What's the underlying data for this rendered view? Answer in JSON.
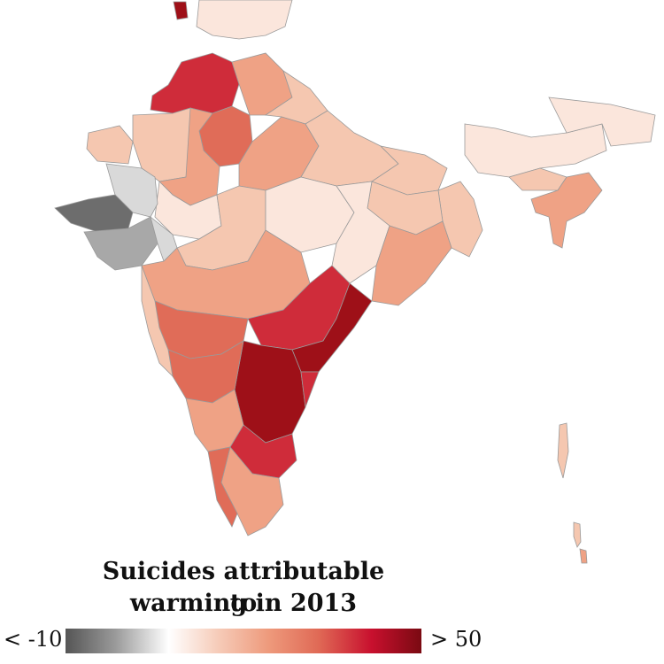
{
  "legend": {
    "title_line1": "Suicides attributable to",
    "title_line2": "warming in 2013",
    "min_label": "< -10",
    "max_label": "> 50",
    "colors": [
      "#555555",
      "#9a9a9a",
      "#ffffff",
      "#f6cbb8",
      "#ee9a7c",
      "#e06a56",
      "#c8102e",
      "#7a0a12"
    ]
  },
  "map_colors": {
    "outline": "#9a9a9a",
    "grey_dark": "#6d6d6d",
    "grey_mid": "#a8a8a8",
    "grey_light": "#d9d9d9",
    "pale": "#fbe6dc",
    "light": "#f5c7b0",
    "salmon": "#efa285",
    "mid_red": "#e06c58",
    "red": "#cf2c3a",
    "dark_red": "#9e1018"
  }
}
